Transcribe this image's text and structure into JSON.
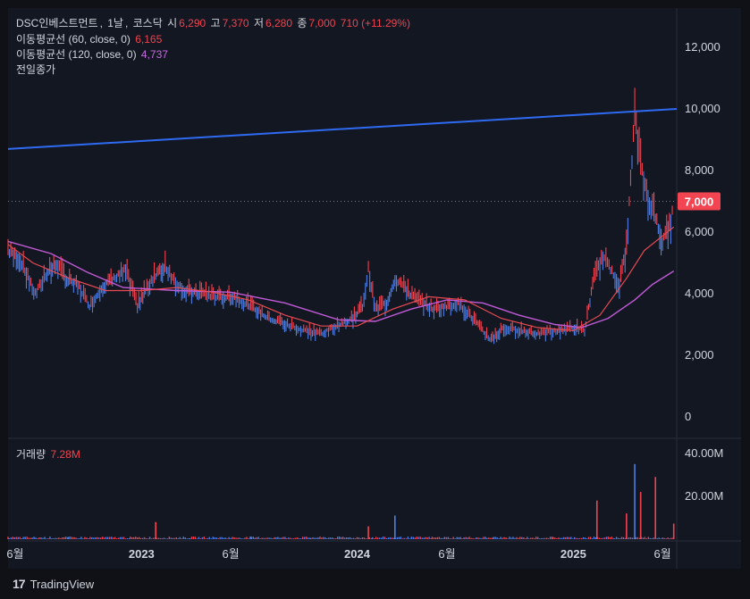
{
  "header": {
    "symbol": "DSC인베스트먼트",
    "interval": "1날",
    "exchange": "코스닥",
    "open_label": "시",
    "open": "6,290",
    "high_label": "고",
    "high": "7,370",
    "low_label": "저",
    "low": "6,280",
    "close_label": "종",
    "close": "7,000",
    "change": "710 (+11.29%)"
  },
  "indicators": [
    {
      "label": "이동평균선 (60, close, 0)",
      "value": "6,165"
    },
    {
      "label": "이동평균선 (120, close, 0)",
      "value": "4,737"
    },
    {
      "label": "전일종가",
      "value": ""
    }
  ],
  "volume_legend": {
    "label": "거래량",
    "value": "7.28M"
  },
  "price_tag": "7,000",
  "brand": {
    "name": "TradingView",
    "logo_text": "17"
  },
  "colors": {
    "background": "#131722",
    "up": "#f0434f",
    "down": "#4d7fe6",
    "ma60": "#e84a52",
    "ma120": "#c05ad6",
    "trendline": "#2f6bf2",
    "price_tag": "#f24451"
  },
  "chart_data": {
    "type": "line",
    "price_axis": {
      "ylim": [
        0,
        13000
      ],
      "ticks": [
        0,
        2000,
        4000,
        6000,
        8000,
        10000,
        12000
      ],
      "tick_labels": [
        "0",
        "2,000",
        "4,000",
        "6,000",
        "8,000",
        "10,000",
        "12,000"
      ]
    },
    "volume_axis": {
      "ylim": [
        0,
        42000000
      ],
      "ticks": [
        20000000,
        40000000
      ],
      "tick_labels": [
        "20.00M",
        "40.00M"
      ]
    },
    "time_axis": {
      "range": [
        "2022-05-20",
        "2025-06-25"
      ],
      "ticks": [
        {
          "date": "2022-06-01",
          "label": "6월"
        },
        {
          "date": "2023-01-01",
          "label": "2023"
        },
        {
          "date": "2023-06-01",
          "label": "6월"
        },
        {
          "date": "2024-01-01",
          "label": "2024"
        },
        {
          "date": "2024-06-01",
          "label": "6월"
        },
        {
          "date": "2025-01-01",
          "label": "2025"
        },
        {
          "date": "2025-06-01",
          "label": "6월"
        }
      ]
    },
    "series": [
      {
        "key": "price",
        "points": [
          [
            "2022-05-20",
            5400
          ],
          [
            "2022-06-10",
            5100
          ],
          [
            "2022-07-05",
            4000
          ],
          [
            "2022-07-25",
            4700
          ],
          [
            "2022-08-10",
            5000
          ],
          [
            "2022-08-25",
            4500
          ],
          [
            "2022-09-15",
            4300
          ],
          [
            "2022-10-05",
            3600
          ],
          [
            "2022-10-25",
            4200
          ],
          [
            "2022-11-15",
            4500
          ],
          [
            "2022-12-05",
            4800
          ],
          [
            "2022-12-25",
            3600
          ],
          [
            "2023-01-10",
            4200
          ],
          [
            "2023-01-25",
            4600
          ],
          [
            "2023-02-10",
            4900
          ],
          [
            "2023-02-25",
            4400
          ],
          [
            "2023-03-15",
            4100
          ],
          [
            "2023-04-10",
            4000
          ],
          [
            "2023-05-10",
            3900
          ],
          [
            "2023-06-05",
            3900
          ],
          [
            "2023-07-05",
            3600
          ],
          [
            "2023-08-05",
            3200
          ],
          [
            "2023-09-05",
            3000
          ],
          [
            "2023-10-05",
            2800
          ],
          [
            "2023-11-01",
            2700
          ],
          [
            "2023-12-01",
            3000
          ],
          [
            "2023-12-25",
            3200
          ],
          [
            "2024-01-10",
            3600
          ],
          [
            "2024-01-20",
            4800
          ],
          [
            "2024-02-01",
            3500
          ],
          [
            "2024-02-20",
            3700
          ],
          [
            "2024-03-05",
            4500
          ],
          [
            "2024-03-20",
            4200
          ],
          [
            "2024-04-10",
            3800
          ],
          [
            "2024-05-10",
            3500
          ],
          [
            "2024-06-05",
            3600
          ],
          [
            "2024-06-20",
            3700
          ],
          [
            "2024-07-10",
            3300
          ],
          [
            "2024-08-05",
            2700
          ],
          [
            "2024-08-15",
            2500
          ],
          [
            "2024-09-05",
            2900
          ],
          [
            "2024-10-05",
            2800
          ],
          [
            "2024-11-05",
            2700
          ],
          [
            "2024-12-05",
            2800
          ],
          [
            "2025-01-05",
            2900
          ],
          [
            "2025-01-20",
            2800
          ],
          [
            "2025-02-05",
            4500
          ],
          [
            "2025-02-20",
            5200
          ],
          [
            "2025-03-05",
            4800
          ],
          [
            "2025-03-20",
            4300
          ],
          [
            "2025-04-01",
            5500
          ],
          [
            "2025-04-15",
            9800
          ],
          [
            "2025-04-25",
            8200
          ],
          [
            "2025-05-05",
            7200
          ],
          [
            "2025-05-20",
            6500
          ],
          [
            "2025-06-01",
            5700
          ],
          [
            "2025-06-15",
            6300
          ],
          [
            "2025-06-20",
            7000
          ]
        ]
      },
      {
        "key": "ma60",
        "name": "이동평균선 (60, close, 0)",
        "points": [
          [
            "2022-05-20",
            5600
          ],
          [
            "2022-07-01",
            5000
          ],
          [
            "2022-09-01",
            4500
          ],
          [
            "2022-11-01",
            4100
          ],
          [
            "2023-01-01",
            4100
          ],
          [
            "2023-03-01",
            4200
          ],
          [
            "2023-05-01",
            4050
          ],
          [
            "2023-07-01",
            3800
          ],
          [
            "2023-09-01",
            3300
          ],
          [
            "2023-11-01",
            2950
          ],
          [
            "2024-01-01",
            2950
          ],
          [
            "2024-03-01",
            3500
          ],
          [
            "2024-05-01",
            3900
          ],
          [
            "2024-07-01",
            3800
          ],
          [
            "2024-09-01",
            3200
          ],
          [
            "2024-11-01",
            2900
          ],
          [
            "2025-01-01",
            2800
          ],
          [
            "2025-02-15",
            3300
          ],
          [
            "2025-04-01",
            4500
          ],
          [
            "2025-05-01",
            5400
          ],
          [
            "2025-06-20",
            6165
          ]
        ]
      },
      {
        "key": "ma120",
        "name": "이동평균선 (120, close, 0)",
        "points": [
          [
            "2022-05-20",
            5700
          ],
          [
            "2022-08-01",
            5300
          ],
          [
            "2022-10-01",
            4700
          ],
          [
            "2022-12-01",
            4200
          ],
          [
            "2023-03-01",
            4100
          ],
          [
            "2023-06-01",
            4050
          ],
          [
            "2023-09-01",
            3700
          ],
          [
            "2023-12-01",
            3150
          ],
          [
            "2024-02-01",
            3100
          ],
          [
            "2024-04-01",
            3500
          ],
          [
            "2024-06-01",
            3800
          ],
          [
            "2024-08-01",
            3700
          ],
          [
            "2024-10-01",
            3300
          ],
          [
            "2024-12-01",
            3000
          ],
          [
            "2025-01-15",
            2900
          ],
          [
            "2025-03-01",
            3200
          ],
          [
            "2025-04-15",
            3800
          ],
          [
            "2025-05-15",
            4300
          ],
          [
            "2025-06-20",
            4737
          ]
        ]
      },
      {
        "key": "trendline",
        "points": [
          [
            "2022-05-20",
            8700
          ],
          [
            "2025-06-25",
            10000
          ]
        ]
      }
    ],
    "volume_spikes": [
      {
        "date": "2023-01-25",
        "value": 8000000
      },
      {
        "date": "2024-01-20",
        "value": 6000000
      },
      {
        "date": "2024-03-05",
        "value": 11000000
      },
      {
        "date": "2025-02-10",
        "value": 18000000
      },
      {
        "date": "2025-04-01",
        "value": 12000000
      },
      {
        "date": "2025-04-15",
        "value": 35000000
      },
      {
        "date": "2025-04-25",
        "value": 22000000
      },
      {
        "date": "2025-05-20",
        "value": 29000000
      },
      {
        "date": "2025-06-20",
        "value": 7280000
      }
    ],
    "last_price": 7000
  }
}
